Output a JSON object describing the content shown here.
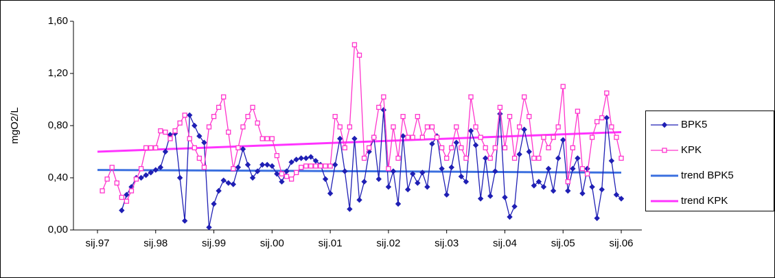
{
  "chart_data": {
    "type": "line",
    "ylabel": "mgO2/L",
    "ylim": [
      0,
      1.6
    ],
    "yticks": [
      {
        "value": 0,
        "label": "0,00"
      },
      {
        "value": 0.4,
        "label": "0,40"
      },
      {
        "value": 0.8,
        "label": "0,80"
      },
      {
        "value": 1.2,
        "label": "1,20"
      },
      {
        "value": 1.6,
        "label": "1,60"
      }
    ],
    "categories": [
      "sij.97",
      null,
      null,
      null,
      null,
      null,
      null,
      null,
      null,
      null,
      null,
      null,
      "sij.98",
      null,
      null,
      null,
      null,
      null,
      null,
      null,
      null,
      null,
      null,
      null,
      "sij.99",
      null,
      null,
      null,
      null,
      null,
      null,
      null,
      null,
      null,
      null,
      null,
      "sij.00",
      null,
      null,
      null,
      null,
      null,
      null,
      null,
      null,
      null,
      null,
      null,
      "sij.01",
      null,
      null,
      null,
      null,
      null,
      null,
      null,
      null,
      null,
      null,
      null,
      "sij.02",
      null,
      null,
      null,
      null,
      null,
      null,
      null,
      null,
      null,
      null,
      null,
      "sij.03",
      null,
      null,
      null,
      null,
      null,
      null,
      null,
      null,
      null,
      null,
      null,
      "sij.04",
      null,
      null,
      null,
      null,
      null,
      null,
      null,
      null,
      null,
      null,
      null,
      "sij.05",
      null,
      null,
      null,
      null,
      null,
      null,
      null,
      null,
      null,
      null,
      null,
      "sij.06"
    ],
    "series": [
      {
        "name": "BPK5",
        "color": "#1f1fb4",
        "marker": "diamond",
        "values": [
          null,
          null,
          null,
          null,
          null,
          0.15,
          0.27,
          0.33,
          0.4,
          0.4,
          0.42,
          0.44,
          0.46,
          0.48,
          0.6,
          0.73,
          0.74,
          0.4,
          0.07,
          0.88,
          0.8,
          0.72,
          0.67,
          0.02,
          0.2,
          0.3,
          0.38,
          0.36,
          0.35,
          0.48,
          0.62,
          0.5,
          0.4,
          0.45,
          0.5,
          0.5,
          0.49,
          0.43,
          0.37,
          0.45,
          0.52,
          0.54,
          0.55,
          0.55,
          0.56,
          0.53,
          0.5,
          0.39,
          0.28,
          0.5,
          0.7,
          0.45,
          0.16,
          0.7,
          0.23,
          0.37,
          0.6,
          0.71,
          0.39,
          0.92,
          0.33,
          0.45,
          0.2,
          0.72,
          0.31,
          0.43,
          0.36,
          0.44,
          0.33,
          0.66,
          0.72,
          0.47,
          0.27,
          0.48,
          0.67,
          0.41,
          0.37,
          0.76,
          0.65,
          0.24,
          0.55,
          0.26,
          0.45,
          0.89,
          0.25,
          0.1,
          0.18,
          0.58,
          0.77,
          0.6,
          0.34,
          0.37,
          0.33,
          0.47,
          0.3,
          0.55,
          0.69,
          0.3,
          0.47,
          0.55,
          0.28,
          0.47,
          0.33,
          0.09,
          0.31,
          0.86,
          0.53,
          0.27,
          0.24
        ]
      },
      {
        "name": "KPK",
        "color": "#ff33cc",
        "marker": "square",
        "values": [
          null,
          0.3,
          0.39,
          0.48,
          0.36,
          0.25,
          0.22,
          0.3,
          0.39,
          0.47,
          0.63,
          0.63,
          0.63,
          0.76,
          0.75,
          0.7,
          0.76,
          0.82,
          0.88,
          0.7,
          0.63,
          0.55,
          0.48,
          0.79,
          0.87,
          0.94,
          1.02,
          0.75,
          0.47,
          0.63,
          0.79,
          0.87,
          0.94,
          0.82,
          0.7,
          0.7,
          0.7,
          0.57,
          0.43,
          0.41,
          0.39,
          0.44,
          0.48,
          0.49,
          0.49,
          0.49,
          0.49,
          0.49,
          0.49,
          0.87,
          0.79,
          0.63,
          0.79,
          1.42,
          1.34,
          0.55,
          0.63,
          0.71,
          0.94,
          1.02,
          0.47,
          0.79,
          0.55,
          0.87,
          0.71,
          0.71,
          0.87,
          0.71,
          0.79,
          0.79,
          0.71,
          0.63,
          0.55,
          0.63,
          0.79,
          0.63,
          0.55,
          1.02,
          0.79,
          0.71,
          0.63,
          0.55,
          0.63,
          0.94,
          0.63,
          0.87,
          0.55,
          0.79,
          1.02,
          0.87,
          0.55,
          0.55,
          0.71,
          0.63,
          0.71,
          0.79,
          1.1,
          0.37,
          0.63,
          0.91,
          0.47,
          0.43,
          0.71,
          0.83,
          0.86,
          1.05,
          0.79,
          0.71,
          0.55
        ]
      }
    ],
    "trends": [
      {
        "name": "trend BPK5",
        "color": "#3a6fdf",
        "start": 0.46,
        "end": 0.44
      },
      {
        "name": "trend KPK",
        "color": "#ff33ff",
        "start": 0.6,
        "end": 0.75
      }
    ],
    "legend": "right"
  }
}
